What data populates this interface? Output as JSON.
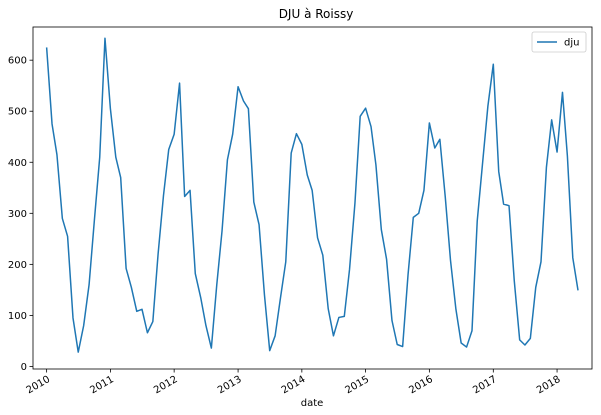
{
  "chart_data": {
    "type": "line",
    "title": "DJU à Roissy",
    "xlabel": "date",
    "ylabel": "",
    "legend_position": "top-right",
    "grid": false,
    "x_range": [
      "2009-10-15",
      "2018-07-20"
    ],
    "y_range": [
      -5,
      665
    ],
    "y_ticks": [
      0,
      100,
      200,
      300,
      400,
      500,
      600
    ],
    "x_ticks": [
      "2010",
      "2011",
      "2012",
      "2013",
      "2014",
      "2015",
      "2016",
      "2017",
      "2018"
    ],
    "x_tick_dates": [
      "2010-01-01",
      "2011-01-01",
      "2012-01-01",
      "2013-01-01",
      "2014-01-01",
      "2015-01-01",
      "2016-01-01",
      "2017-01-01",
      "2018-01-01"
    ],
    "series": [
      {
        "name": "dju",
        "color": "#1f77b4",
        "x": [
          "2010-01",
          "2010-02",
          "2010-03",
          "2010-04",
          "2010-05",
          "2010-06",
          "2010-07",
          "2010-08",
          "2010-09",
          "2010-10",
          "2010-11",
          "2010-12",
          "2011-01",
          "2011-02",
          "2011-03",
          "2011-04",
          "2011-05",
          "2011-06",
          "2011-07",
          "2011-08",
          "2011-09",
          "2011-10",
          "2011-11",
          "2011-12",
          "2012-01",
          "2012-02",
          "2012-03",
          "2012-04",
          "2012-05",
          "2012-06",
          "2012-07",
          "2012-08",
          "2012-09",
          "2012-10",
          "2012-11",
          "2012-12",
          "2013-01",
          "2013-02",
          "2013-03",
          "2013-04",
          "2013-05",
          "2013-06",
          "2013-07",
          "2013-08",
          "2013-09",
          "2013-10",
          "2013-11",
          "2013-12",
          "2014-01",
          "2014-02",
          "2014-03",
          "2014-04",
          "2014-05",
          "2014-06",
          "2014-07",
          "2014-08",
          "2014-09",
          "2014-10",
          "2014-11",
          "2014-12",
          "2015-01",
          "2015-02",
          "2015-03",
          "2015-04",
          "2015-05",
          "2015-06",
          "2015-07",
          "2015-08",
          "2015-09",
          "2015-10",
          "2015-11",
          "2015-12",
          "2016-01",
          "2016-02",
          "2016-03",
          "2016-04",
          "2016-05",
          "2016-06",
          "2016-07",
          "2016-08",
          "2016-09",
          "2016-10",
          "2016-11",
          "2016-12",
          "2017-01",
          "2017-02",
          "2017-03",
          "2017-04",
          "2017-05",
          "2017-06",
          "2017-07",
          "2017-08",
          "2017-09",
          "2017-10",
          "2017-11",
          "2017-12",
          "2018-01",
          "2018-02",
          "2018-03",
          "2018-04",
          "2018-05"
        ],
        "values": [
          625,
          475,
          415,
          290,
          255,
          95,
          28,
          80,
          160,
          285,
          410,
          643,
          505,
          410,
          370,
          192,
          155,
          108,
          112,
          66,
          88,
          220,
          335,
          425,
          455,
          555,
          333,
          345,
          182,
          135,
          80,
          36,
          160,
          265,
          405,
          455,
          548,
          520,
          505,
          322,
          278,
          140,
          31,
          60,
          135,
          205,
          418,
          456,
          435,
          375,
          345,
          252,
          218,
          113,
          60,
          96,
          98,
          190,
          320,
          490,
          506,
          470,
          395,
          268,
          210,
          90,
          43,
          39,
          180,
          292,
          300,
          345,
          477,
          428,
          445,
          332,
          208,
          112,
          46,
          38,
          70,
          285,
          400,
          510,
          592,
          382,
          318,
          315,
          168,
          52,
          42,
          55,
          155,
          205,
          390,
          483,
          420,
          537,
          413,
          213,
          149
        ]
      }
    ]
  }
}
